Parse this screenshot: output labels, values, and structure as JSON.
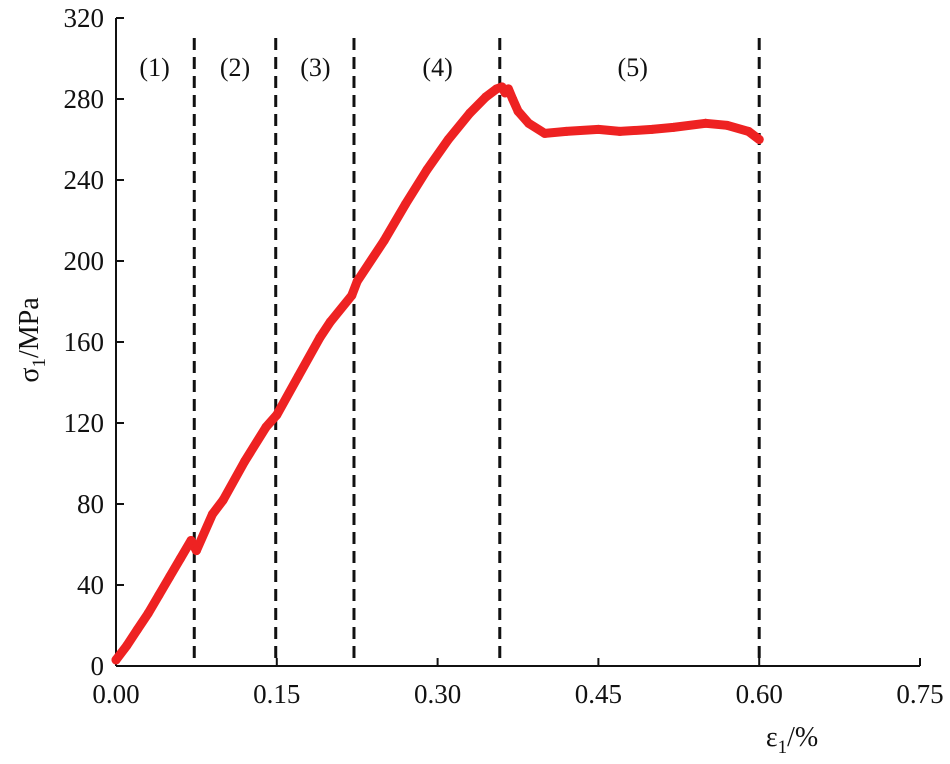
{
  "chart_data": {
    "type": "line",
    "xlabel": "ε1/%",
    "ylabel": "σ1/MPa",
    "xlim": [
      0,
      0.75
    ],
    "ylim": [
      0,
      320
    ],
    "x_ticks": [
      "0.00",
      "0.15",
      "0.30",
      "0.45",
      "0.60",
      "0.75"
    ],
    "y_ticks": [
      "0",
      "40",
      "80",
      "120",
      "160",
      "200",
      "240",
      "280",
      "320"
    ],
    "grid": false,
    "series": [
      {
        "color": "#ee2222",
        "x": [
          0.0,
          0.01,
          0.02,
          0.03,
          0.04,
          0.05,
          0.06,
          0.07,
          0.075,
          0.09,
          0.1,
          0.12,
          0.14,
          0.15,
          0.17,
          0.19,
          0.2,
          0.22,
          0.225,
          0.25,
          0.27,
          0.29,
          0.31,
          0.33,
          0.345,
          0.355,
          0.36,
          0.363,
          0.366,
          0.37,
          0.375,
          0.385,
          0.4,
          0.42,
          0.45,
          0.47,
          0.5,
          0.52,
          0.55,
          0.57,
          0.59,
          0.6
        ],
        "y": [
          3,
          10,
          18,
          26,
          35,
          44,
          53,
          62,
          57,
          75,
          82,
          101,
          118,
          124,
          143,
          162,
          170,
          183,
          190,
          210,
          228,
          245,
          260,
          273,
          281,
          285,
          286,
          283,
          285,
          280,
          274,
          268,
          263,
          264,
          265,
          264,
          265,
          266,
          268,
          267,
          264,
          260
        ]
      }
    ],
    "dividers_x": [
      0.073,
      0.149,
      0.222,
      0.358,
      0.6
    ],
    "regions": [
      {
        "label": "(1)",
        "x": 0.036
      },
      {
        "label": "(2)",
        "x": 0.111
      },
      {
        "label": "(3)",
        "x": 0.186
      },
      {
        "label": "(4)",
        "x": 0.3
      },
      {
        "label": "(5)",
        "x": 0.482
      }
    ]
  }
}
